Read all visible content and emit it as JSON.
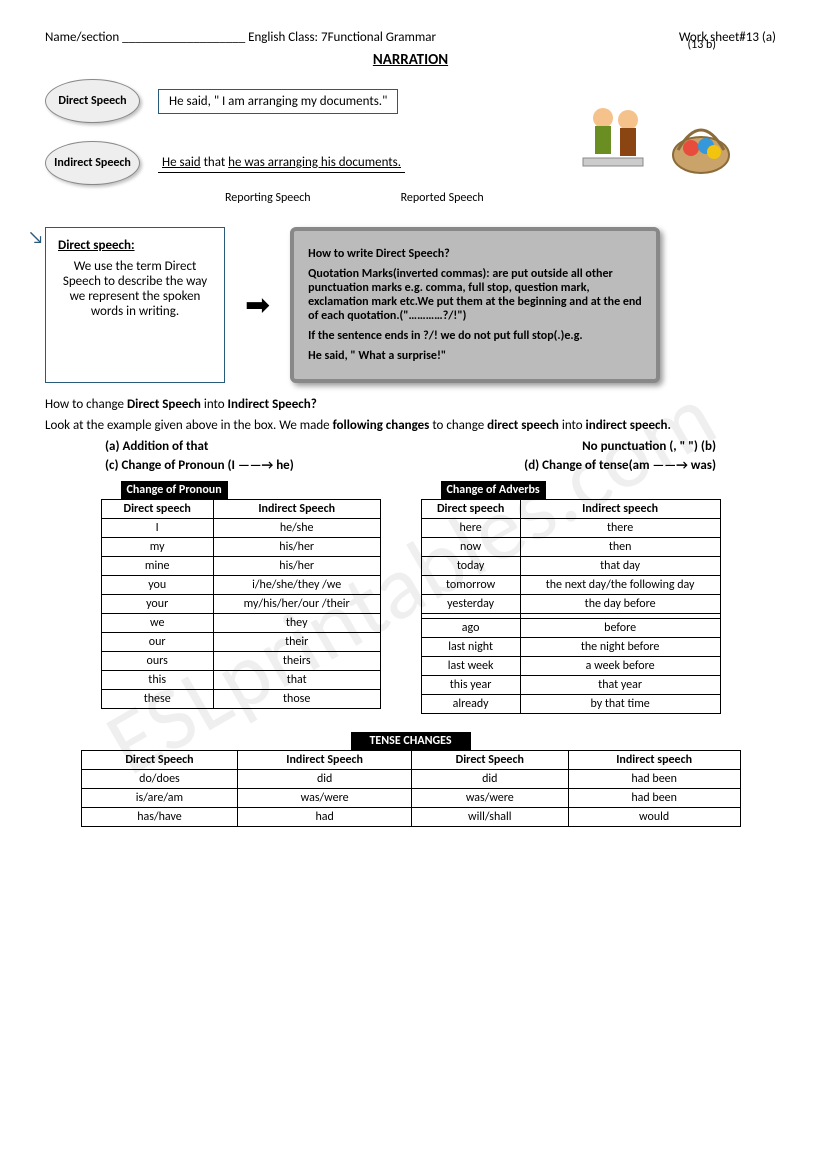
{
  "page_num_top": "(13 b)",
  "header": {
    "left": "Name/section ___________________ English Class: 7",
    "mid": "Functional Grammar",
    "right": "Work sheet#13 (a)"
  },
  "title": "NARRATION",
  "direct_label": "Direct Speech",
  "direct_sentence": "He said, \" I am arranging my documents.\"",
  "indirect_label": "Indirect Speech",
  "indirect_sentence_pre": "He said",
  "indirect_sentence_that": " that ",
  "indirect_sentence_rest": "he was arranging his documents.",
  "label_reporting": "Reporting Speech",
  "label_reported": "Reported Speech",
  "defbox": {
    "title": "Direct speech:",
    "text": "We use the term Direct Speech to describe the way we represent the spoken words in writing."
  },
  "greybox": {
    "q": "How to write Direct Speech?",
    "p1": "Quotation Marks(inverted commas): are put outside all other punctuation marks e.g. comma, full stop, question mark, exclamation mark etc.We put them at the beginning and at the end of each quotation.(\"…………?/!\")",
    "p2": "If the sentence ends in ?/! we do not put full stop(.)e.g.",
    "p3": "He  said, \" What a surprise!\""
  },
  "para1_a": "How to change ",
  "para1_b": "Direct Speech",
  "para1_c": " into ",
  "para1_d": "Indirect Speech?",
  "para2_a": "Look at the example given above in the box. We made ",
  "para2_b": "following changes",
  "para2_c": " to change ",
  "para2_d": "direct speech",
  "para2_e": " into ",
  "para2_f": "indirect speech.",
  "change_a": "(a)      Addition of     that",
  "change_b": "No punctuation (,   \"        \") (b)",
  "change_c": "(c)    Change of Pronoun (I ——→ he)",
  "change_d": "(d)  Change of tense(am ——→ was)",
  "pronoun_title": "Change of Pronoun",
  "pronoun_table": {
    "headers": [
      "Direct speech",
      "Indirect Speech"
    ],
    "rows": [
      [
        "I",
        "he/she"
      ],
      [
        "my",
        "his/her"
      ],
      [
        "mine",
        "his/her"
      ],
      [
        "you",
        "i/he/she/they /we"
      ],
      [
        "your",
        "my/his/her/our /their"
      ],
      [
        "we",
        "they"
      ],
      [
        "our",
        "their"
      ],
      [
        "ours",
        "theirs"
      ],
      [
        "this",
        "that"
      ],
      [
        "these",
        "those"
      ]
    ]
  },
  "adverb_title": "Change of Adverbs",
  "adverb_table": {
    "headers": [
      "Direct speech",
      "Indirect speech"
    ],
    "rows": [
      [
        "here",
        "there"
      ],
      [
        "now",
        "then"
      ],
      [
        "today",
        "that day"
      ],
      [
        "tomorrow",
        "the next day/the following day"
      ],
      [
        "yesterday",
        "the day before"
      ],
      [
        "",
        ""
      ],
      [
        "ago",
        "before"
      ],
      [
        "last night",
        "the night before"
      ],
      [
        "last week",
        "a week before"
      ],
      [
        "this year",
        "that year"
      ],
      [
        "already",
        "by that time"
      ]
    ]
  },
  "tense_title": "TENSE CHANGES",
  "tense_table": {
    "headers": [
      "Direct Speech",
      "Indirect Speech",
      "Direct Speech",
      "Indirect speech"
    ],
    "rows": [
      [
        "do/does",
        "did",
        "did",
        "had been"
      ],
      [
        "is/are/am",
        "was/were",
        "was/were",
        "had been"
      ],
      [
        "has/have",
        "had",
        "will/shall",
        "would"
      ]
    ]
  },
  "watermark": "ESLprintables.com"
}
